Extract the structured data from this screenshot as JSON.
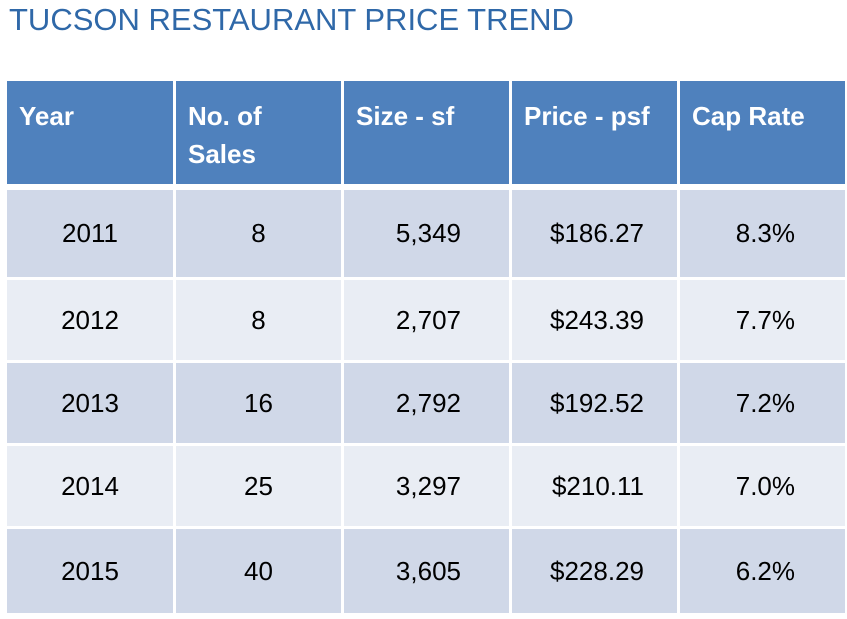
{
  "title": "TUCSON RESTAURANT PRICE TREND",
  "colors": {
    "title": "#2f68a8",
    "header_bg": "#4f81bd",
    "row_band_dark": "#d0d8e8",
    "row_band_light": "#e9edf4"
  },
  "chart_data": {
    "type": "table",
    "title": "TUCSON RESTAURANT PRICE TREND",
    "columns": [
      "Year",
      "No. of Sales",
      "Size - sf",
      "Price - psf",
      "Cap Rate"
    ],
    "rows": [
      [
        "2011",
        "8",
        "5,349",
        "$186.27",
        "8.3%"
      ],
      [
        "2012",
        "8",
        "2,707",
        "$243.39",
        "7.7%"
      ],
      [
        "2013",
        "16",
        "2,792",
        "$192.52",
        "7.2%"
      ],
      [
        "2014",
        "25",
        "3,297",
        "$210.11",
        "7.0%"
      ],
      [
        "2015",
        "40",
        "3,605",
        "$228.29",
        "6.2%"
      ]
    ]
  }
}
